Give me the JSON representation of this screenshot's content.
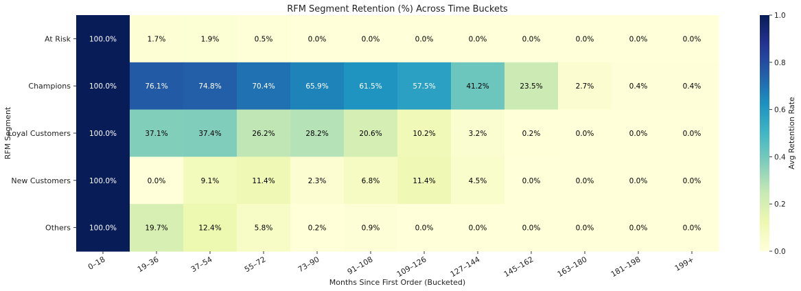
{
  "chart_data": {
    "type": "heatmap",
    "title": "RFM Segment Retention (%) Across Time Buckets",
    "xlabel": "Months Since First Order (Bucketed)",
    "ylabel": "RFM Segment",
    "x_categories": [
      "0–18",
      "19–36",
      "37–54",
      "55–72",
      "73–90",
      "91–108",
      "109–126",
      "127–144",
      "145–162",
      "163–180",
      "181–198",
      "199+"
    ],
    "y_categories": [
      "At Risk",
      "Champions",
      "Loyal Customers",
      "New Customers",
      "Others"
    ],
    "values": [
      [
        100.0,
        1.7,
        1.9,
        0.5,
        0.0,
        0.0,
        0.0,
        0.0,
        0.0,
        0.0,
        0.0,
        0.0
      ],
      [
        100.0,
        76.1,
        74.8,
        70.4,
        65.9,
        61.5,
        57.5,
        41.2,
        23.5,
        2.7,
        0.4,
        0.4
      ],
      [
        100.0,
        37.1,
        37.4,
        26.2,
        28.2,
        20.6,
        10.2,
        3.2,
        0.2,
        0.0,
        0.0,
        0.0
      ],
      [
        100.0,
        0.0,
        9.1,
        11.4,
        2.3,
        6.8,
        11.4,
        4.5,
        0.0,
        0.0,
        0.0,
        0.0
      ],
      [
        100.0,
        19.7,
        12.4,
        5.8,
        0.2,
        0.9,
        0.0,
        0.0,
        0.0,
        0.0,
        0.0,
        0.0
      ]
    ],
    "value_format": "%",
    "colormap": "YlGnBu",
    "colorbar": {
      "label": "Avg Retention Rate",
      "range": [
        0.0,
        1.0
      ],
      "ticks": [
        "0.0",
        "0.2",
        "0.4",
        "0.6",
        "0.8",
        "1.0"
      ]
    },
    "grid": false,
    "legend": "colorbar-right"
  }
}
